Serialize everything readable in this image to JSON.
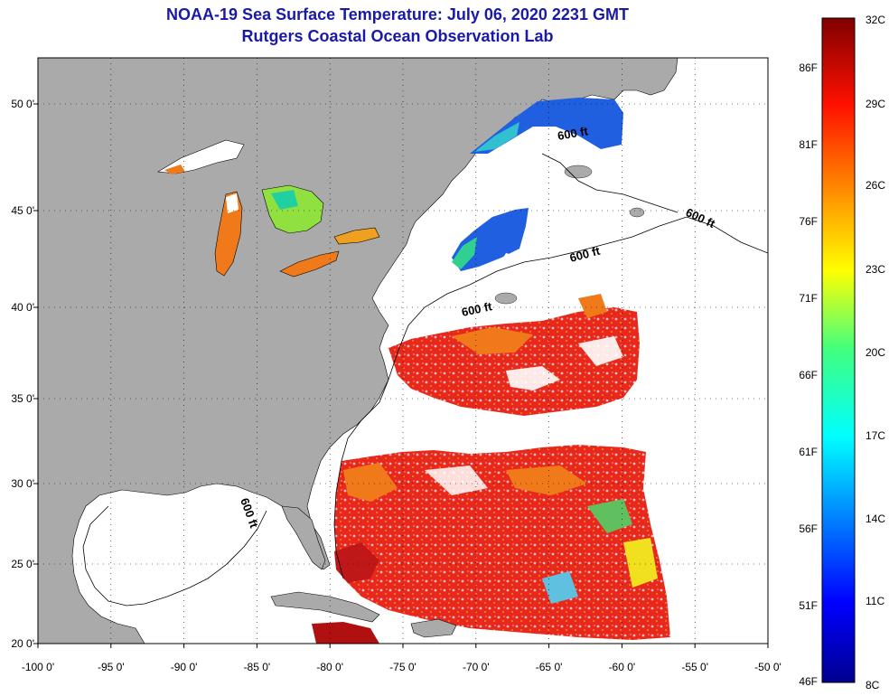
{
  "title": {
    "line1": "NOAA-19 Sea Surface Temperature:  July 06, 2020 2231 GMT",
    "line2": "Rutgers Coastal Ocean Observation Lab"
  },
  "map": {
    "lon_ticks": [
      "-100 0'",
      "-95 0'",
      "-90 0'",
      "-85 0'",
      "-80 0'",
      "-75 0'",
      "-70 0'",
      "-65 0'",
      "-60 0'",
      "-55 0'",
      "-50 0'"
    ],
    "lat_ticks": [
      "50 0'",
      "45 0'",
      "40 0'",
      "35 0'",
      "30 0'",
      "25 0'",
      "20 0'"
    ],
    "contour_labels": [
      "600 ft",
      "600 ft",
      "600 ft",
      "600 ft",
      "600 ft"
    ],
    "colors": {
      "land": "#aaaaaa",
      "cloud": "#ffffff",
      "warm": "#e8281c",
      "orange": "#f07a1a",
      "cool": "#1f5fe0"
    }
  },
  "colorbar": {
    "left_labels": [
      "86F",
      "81F",
      "76F",
      "71F",
      "66F",
      "61F",
      "56F",
      "51F",
      "46F"
    ],
    "right_labels": [
      "32C",
      "29C",
      "26C",
      "23C",
      "20C",
      "17C",
      "14C",
      "11C",
      "8C"
    ]
  }
}
